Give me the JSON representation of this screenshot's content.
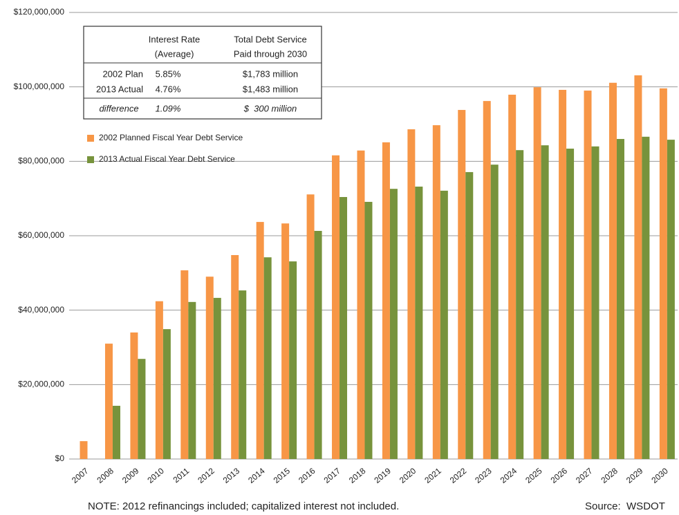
{
  "chart_data": {
    "type": "bar",
    "categories": [
      "2007",
      "2008",
      "2009",
      "2010",
      "2011",
      "2012",
      "2013",
      "2014",
      "2015",
      "2016",
      "2017",
      "2018",
      "2019",
      "2020",
      "2021",
      "2022",
      "2023",
      "2024",
      "2025",
      "2026",
      "2027",
      "2028",
      "2029",
      "2030"
    ],
    "series": [
      {
        "name": "2002 Planned Fiscal Year Debt Service",
        "color": "#f79646",
        "values": [
          4800000,
          31000000,
          34000000,
          42400000,
          50700000,
          49000000,
          54800000,
          63700000,
          63300000,
          71100000,
          81600000,
          82900000,
          85100000,
          88600000,
          89700000,
          93800000,
          96200000,
          97900000,
          99900000,
          99200000,
          99000000,
          101100000,
          103100000,
          99600000
        ]
      },
      {
        "name": "2013 Actual Fiscal Year Debt Service",
        "color": "#77933c",
        "values": [
          null,
          14300000,
          26900000,
          34900000,
          42200000,
          43300000,
          45300000,
          54200000,
          53100000,
          61300000,
          70400000,
          69100000,
          72600000,
          73200000,
          72100000,
          77100000,
          79100000,
          83000000,
          84300000,
          83400000,
          84000000,
          86000000,
          86600000,
          85800000
        ]
      }
    ],
    "ylim": [
      0,
      120000000
    ],
    "yticks": [
      {
        "value": 0,
        "label": "$0"
      },
      {
        "value": 20000000,
        "label": "$20,000,000"
      },
      {
        "value": 40000000,
        "label": "$40,000,000"
      },
      {
        "value": 60000000,
        "label": "$60,000,000"
      },
      {
        "value": 80000000,
        "label": "$80,000,000"
      },
      {
        "value": 100000000,
        "label": "$100,000,000"
      },
      {
        "value": 120000000,
        "label": "$120,000,000"
      }
    ],
    "grid": true,
    "inset_table": {
      "header": [
        [
          "Interest Rate",
          "(Average)"
        ],
        [
          "Total Debt Service",
          "Paid through 2030"
        ]
      ],
      "rows": [
        [
          "2002 Plan",
          "5.85%",
          "$1,783 million"
        ],
        [
          "2013 Actual",
          "4.76%",
          "$1,483 million"
        ],
        [
          "difference",
          "1.09%",
          "$  300 million"
        ]
      ]
    },
    "note": "NOTE:  2012 refinancings included; capitalized interest not included.",
    "source": "Source:  WSDOT"
  }
}
